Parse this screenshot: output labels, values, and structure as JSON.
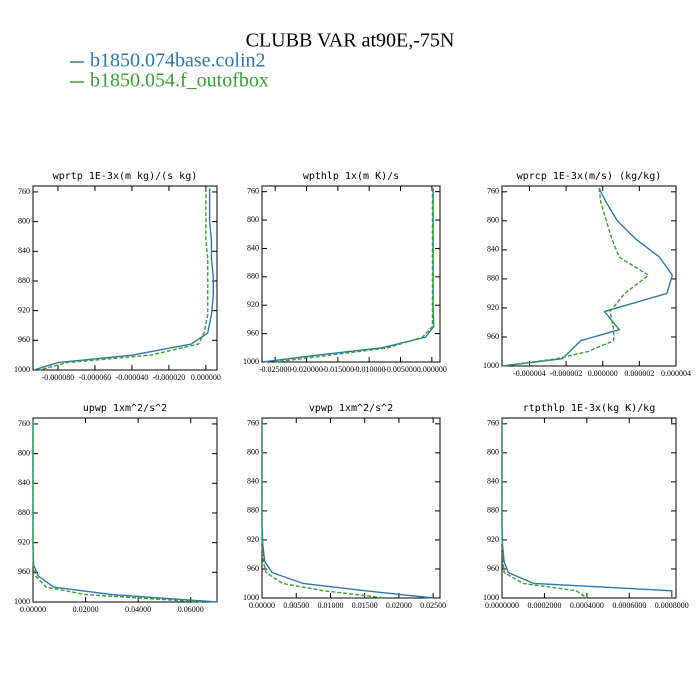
{
  "title": "CLUBB VAR at90E,-75N",
  "legend": [
    {
      "name": "b1850.074base.colin2",
      "color": "#2b78b0"
    },
    {
      "name": "b1850.054.f_outofbox",
      "color": "#3a9e35"
    }
  ],
  "chart_data": [
    {
      "type": "line",
      "title": "wprtp  1E-3x(m kg)/(s kg)",
      "y": [
        755,
        775,
        800,
        825,
        850,
        875,
        900,
        925,
        950,
        965,
        980,
        990,
        1000
      ],
      "ylim": [
        1000,
        752
      ],
      "yticks": [
        760,
        800,
        840,
        880,
        920,
        960,
        1000
      ],
      "xlim": [
        -9.35e-05,
        6e-06
      ],
      "xticks": [
        {
          "value": -8e-05,
          "label": "-0.000080"
        },
        {
          "value": -6e-05,
          "label": "-0.000060"
        },
        {
          "value": -4e-05,
          "label": "-0.000040"
        },
        {
          "value": -2e-05,
          "label": "-0.000020"
        },
        {
          "value": 0,
          "label": "0.000000"
        }
      ],
      "series": [
        {
          "values": [
            2e-06,
            2e-06,
            2e-06,
            3e-06,
            3e-06,
            4e-06,
            4e-06,
            3e-06,
            1e-06,
            -8e-06,
            -4e-05,
            -8e-05,
            -9.3e-05
          ]
        },
        {
          "values": [
            0.0,
            0.0,
            0.0,
            0.0,
            1e-06,
            1e-06,
            1e-06,
            1e-06,
            -1e-06,
            -4e-06,
            -3e-05,
            -7.5e-05,
            -9e-05
          ]
        }
      ]
    },
    {
      "type": "line",
      "title": "wpthlp  1x(m K)/s",
      "y": [
        755,
        775,
        800,
        825,
        850,
        875,
        900,
        925,
        950,
        965,
        980,
        990,
        1000
      ],
      "ylim": [
        1000,
        752
      ],
      "yticks": [
        760,
        800,
        840,
        880,
        920,
        960,
        1000
      ],
      "xlim": [
        -0.0271,
        0.0013
      ],
      "xticks": [
        {
          "value": -0.025,
          "label": "-0.025000"
        },
        {
          "value": -0.02,
          "label": "-0.020000"
        },
        {
          "value": -0.015,
          "label": "-0.015000"
        },
        {
          "value": -0.01,
          "label": "-0.010000"
        },
        {
          "value": -0.005,
          "label": "-0.005000"
        },
        {
          "value": 0,
          "label": "0.000000"
        }
      ],
      "series": [
        {
          "values": [
            0.0002,
            0.0002,
            0.0002,
            0.0002,
            0.0002,
            0.0002,
            0.0002,
            0.0002,
            0.0003,
            -0.001,
            -0.008,
            -0.018,
            -0.027
          ]
        },
        {
          "values": [
            0.0001,
            0.0001,
            0.0001,
            0.0001,
            0.0001,
            0.0001,
            0.0001,
            0.0001,
            0.0001,
            -0.0015,
            -0.007,
            -0.016,
            -0.025
          ]
        }
      ]
    },
    {
      "type": "line",
      "title": "wprcp  1E-3x(m/s) (kg/kg)",
      "y": [
        755,
        775,
        800,
        825,
        850,
        875,
        900,
        925,
        950,
        965,
        980,
        990,
        1000
      ],
      "ylim": [
        1000,
        752
      ],
      "yticks": [
        760,
        800,
        840,
        880,
        920,
        960,
        1000
      ],
      "xlim": [
        -5.5e-06,
        4e-06
      ],
      "xticks": [
        {
          "value": -4e-06,
          "label": "-0.000004"
        },
        {
          "value": -2e-06,
          "label": "-0.000002"
        },
        {
          "value": 0,
          "label": "0.000000"
        },
        {
          "value": 2e-06,
          "label": "0.000002"
        },
        {
          "value": 4e-06,
          "label": "0.000004"
        }
      ],
      "series": [
        {
          "values": [
            -2e-07,
            2e-07,
            8e-07,
            1.8e-06,
            3.1e-06,
            3.8e-06,
            3.5e-06,
            1e-07,
            9e-07,
            -1.2e-06,
            -1.8e-06,
            -2.2e-06,
            -5.5e-06
          ]
        },
        {
          "values": [
            -2e-07,
            -1e-07,
            2e-07,
            5e-07,
            9e-07,
            2.5e-06,
            1.2e-06,
            4e-07,
            6e-07,
            6e-07,
            -8e-07,
            -2.5e-06,
            -5.5e-06
          ]
        }
      ]
    },
    {
      "type": "line",
      "title": "upwp  1xm^2/s^2",
      "y": [
        755,
        775,
        800,
        825,
        850,
        875,
        900,
        925,
        950,
        965,
        980,
        990,
        1000
      ],
      "ylim": [
        1000,
        752
      ],
      "yticks": [
        760,
        800,
        840,
        880,
        920,
        960,
        1000
      ],
      "xlim": [
        0,
        0.07
      ],
      "xticks": [
        {
          "value": 0,
          "label": "0.00000"
        },
        {
          "value": 0.02,
          "label": "0.02000"
        },
        {
          "value": 0.04,
          "label": "0.04000"
        },
        {
          "value": 0.06,
          "label": "0.06000"
        }
      ],
      "series": [
        {
          "values": [
            0.0,
            0.0,
            0.0,
            0.0,
            0.0,
            0.0,
            0.0,
            0.0,
            0.0002,
            0.002,
            0.008,
            0.03,
            0.07
          ]
        },
        {
          "values": [
            0.0,
            0.0,
            0.0,
            0.0,
            0.0,
            0.0,
            0.0,
            0.0,
            0.0001,
            0.001,
            0.005,
            0.02,
            0.065
          ]
        }
      ]
    },
    {
      "type": "line",
      "title": "vpwp  1xm^2/s^2",
      "y": [
        755,
        775,
        800,
        825,
        850,
        875,
        900,
        925,
        950,
        965,
        980,
        990,
        1000
      ],
      "ylim": [
        1000,
        752
      ],
      "yticks": [
        760,
        800,
        840,
        880,
        920,
        960,
        1000
      ],
      "xlim": [
        0,
        0.026
      ],
      "xticks": [
        {
          "value": 0,
          "label": "0.00000"
        },
        {
          "value": 0.005,
          "label": "0.00500"
        },
        {
          "value": 0.01,
          "label": "0.01000"
        },
        {
          "value": 0.015,
          "label": "0.01500"
        },
        {
          "value": 0.02,
          "label": "0.02000"
        },
        {
          "value": 0.025,
          "label": "0.02500"
        }
      ],
      "series": [
        {
          "values": [
            0.0,
            0.0,
            0.0,
            0.0,
            0.0,
            0.0,
            0.0,
            0.0001,
            0.0004,
            0.0015,
            0.006,
            0.015,
            0.025
          ]
        },
        {
          "values": [
            0.0,
            0.0,
            0.0,
            0.0,
            0.0,
            0.0,
            0.0,
            0.0,
            0.0002,
            0.0006,
            0.003,
            0.009,
            0.018
          ]
        }
      ]
    },
    {
      "type": "line",
      "title": "rtpthlp  1E-3x(kg K)/kg",
      "y": [
        755,
        775,
        800,
        825,
        850,
        875,
        900,
        925,
        950,
        965,
        980,
        990,
        1000
      ],
      "ylim": [
        1000,
        752
      ],
      "yticks": [
        760,
        800,
        840,
        880,
        920,
        960,
        1000
      ],
      "xlim": [
        0,
        0.00082
      ],
      "xticks": [
        {
          "value": 0,
          "label": "0.0000000"
        },
        {
          "value": 0.0002,
          "label": "0.0002000"
        },
        {
          "value": 0.0004,
          "label": "0.0004000"
        },
        {
          "value": 0.0006,
          "label": "0.0006000"
        },
        {
          "value": 0.0008,
          "label": "0.0008000"
        }
      ],
      "series": [
        {
          "values": [
            0.0,
            0.0,
            0.0,
            0.0,
            0.0,
            0.0,
            0.0,
            2e-06,
            1e-05,
            3e-05,
            0.00015,
            0.0008,
            0.0008
          ]
        },
        {
          "values": [
            0.0,
            0.0,
            0.0,
            0.0,
            0.0,
            0.0,
            0.0,
            1e-06,
            5e-06,
            1e-05,
            0.0001,
            0.00035,
            0.0004
          ]
        }
      ]
    }
  ]
}
